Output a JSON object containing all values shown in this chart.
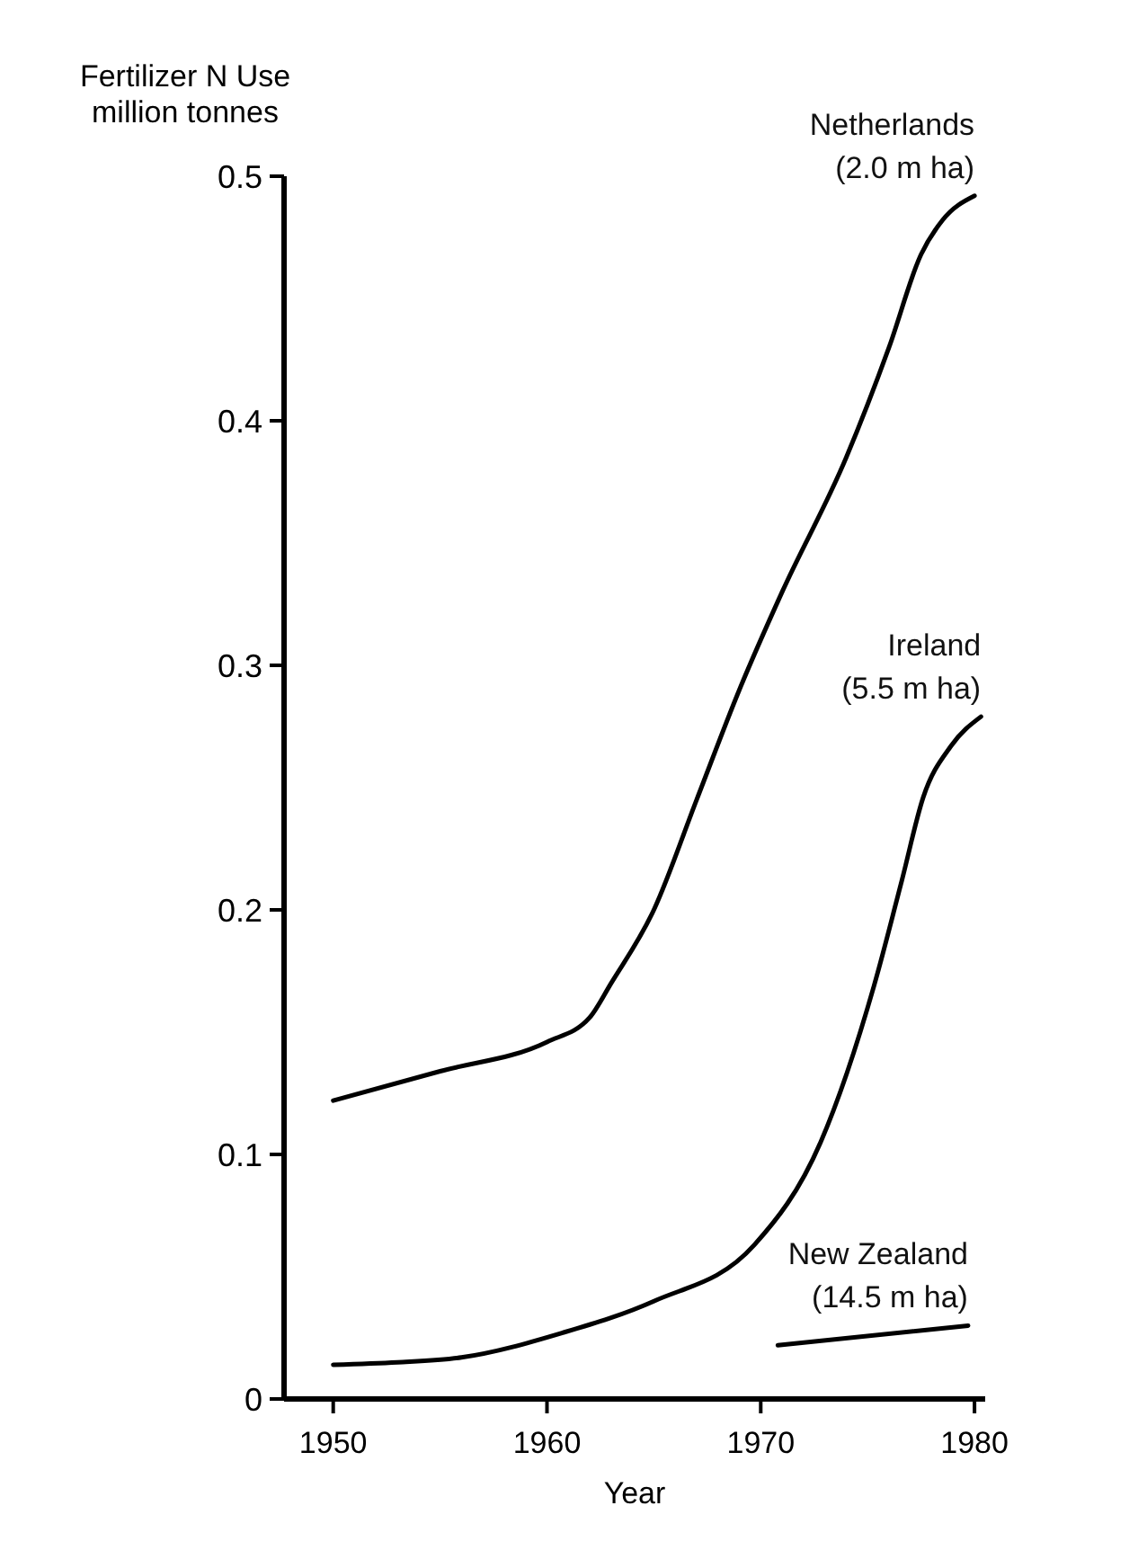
{
  "chart_data": {
    "type": "line",
    "ylabel": "Fertilizer N Use million tonnes",
    "xlabel": "Year",
    "xlim": [
      1947.7,
      1980.5
    ],
    "ylim": [
      0,
      0.5
    ],
    "xticks": [
      1950,
      1960,
      1970,
      1980
    ],
    "yticks": [
      0,
      0.1,
      0.2,
      0.3,
      0.4,
      0.5
    ],
    "grid": false,
    "marker": "none",
    "line_style": "solid",
    "series": [
      {
        "name": "Netherlands (2.0 m ha)",
        "color": "#000000",
        "x": [
          1950,
          1955,
          1960,
          1962,
          1963,
          1965,
          1967,
          1969,
          1971,
          1974,
          1976,
          1977.5,
          1978.5,
          1980
        ],
        "values": [
          0.122,
          0.134,
          0.146,
          0.156,
          0.17,
          0.2,
          0.245,
          0.29,
          0.33,
          0.385,
          0.43,
          0.468,
          0.482,
          0.492
        ]
      },
      {
        "name": "Ireland (5.5 m ha)",
        "color": "#000000",
        "x": [
          1950,
          1953,
          1956,
          1960.7,
          1965,
          1969.7,
          1972.8,
          1975.3,
          1976.6,
          1977.6,
          1978.9,
          1980.3
        ],
        "values": [
          0.014,
          0.015,
          0.017,
          0.027,
          0.04,
          0.063,
          0.105,
          0.169,
          0.212,
          0.246,
          0.267,
          0.279
        ]
      },
      {
        "name": "New Zealand (14.5 m ha)",
        "color": "#000000",
        "x": [
          1970.8,
          1979.7
        ],
        "values": [
          0.022,
          0.03
        ]
      }
    ]
  }
}
